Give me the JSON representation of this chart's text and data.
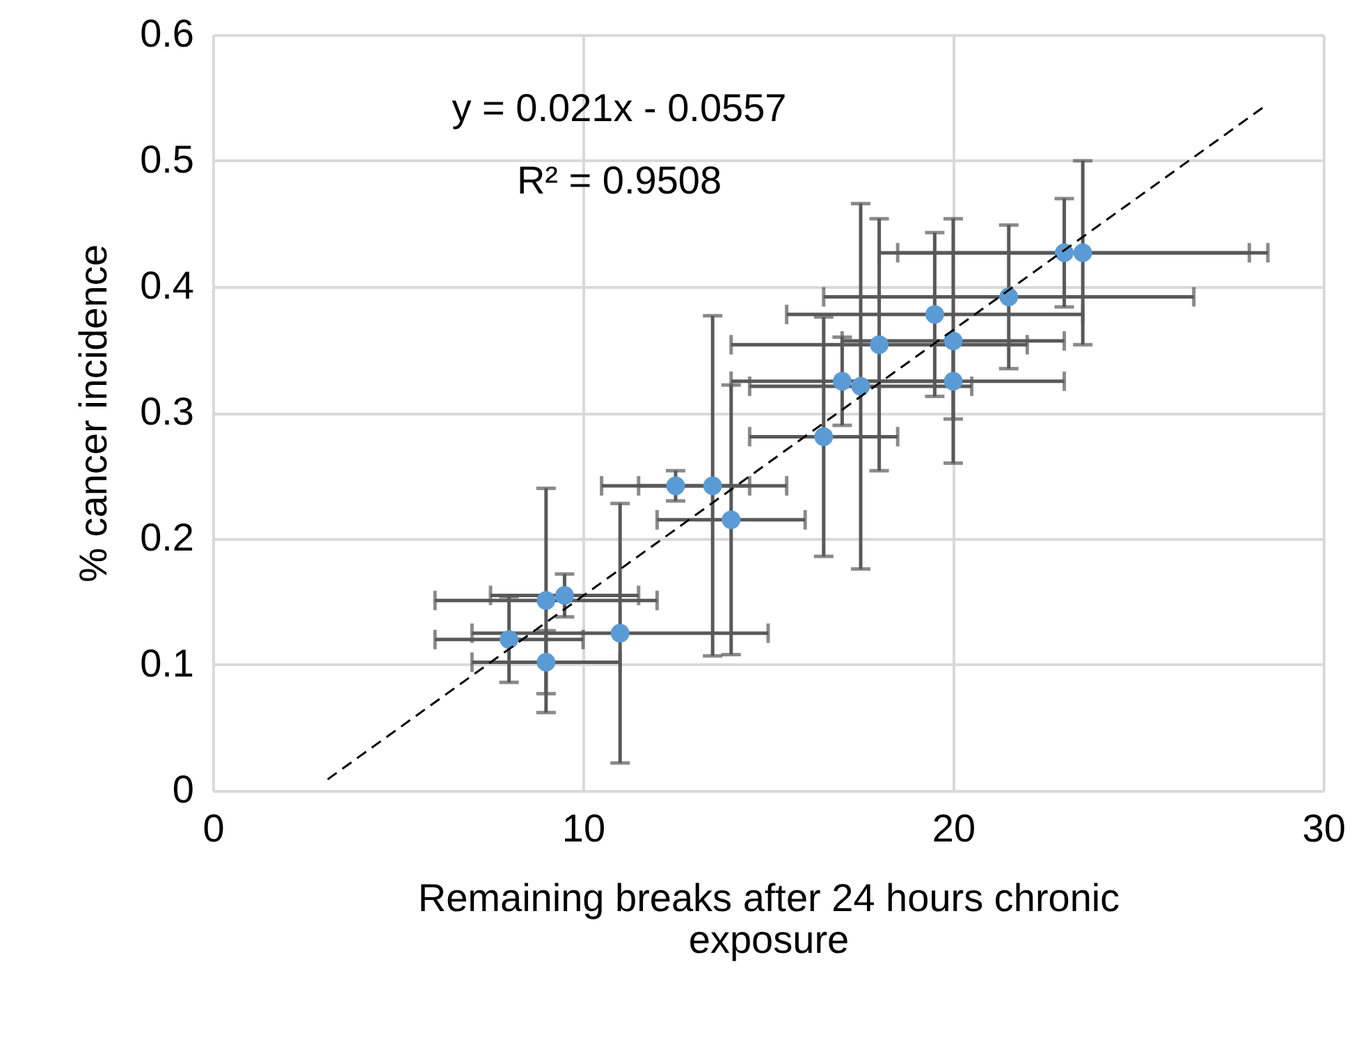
{
  "chart_data": {
    "type": "scatter",
    "xlabel": "Remaining breaks after 24 hours chronic exposure",
    "ylabel": "% cancer incidence",
    "annotations": [
      "y = 0.021x - 0.0557",
      "R² = 0.9508"
    ],
    "xlim": [
      0,
      30
    ],
    "xticks": [
      0,
      10,
      20,
      30
    ],
    "ylim": [
      0,
      0.6
    ],
    "yticks": [
      0,
      0.1,
      0.2,
      0.3,
      0.4,
      0.5,
      0.6
    ],
    "grid": true,
    "marker": "circle",
    "series": [
      {
        "color": "#5b9bd5",
        "x": [
          8,
          9,
          9,
          9.5,
          11,
          12.5,
          13.5,
          14,
          16.5,
          17,
          17.5,
          18,
          19.5,
          20,
          20,
          21.5,
          23,
          23.5
        ],
        "values": [
          0.12,
          0.102,
          0.151,
          0.155,
          0.125,
          0.242,
          0.242,
          0.215,
          0.281,
          0.325,
          0.321,
          0.354,
          0.378,
          0.357,
          0.325,
          0.392,
          0.427,
          0.427
        ],
        "errors": [
          0.034,
          0.025,
          0.089,
          0.017,
          0.103,
          0.012,
          0.135,
          0.107,
          0.095,
          0.035,
          0.145,
          0.1,
          0.065,
          0.097,
          0.03,
          0.057,
          0.043,
          0.073
        ],
        "xerrors": [
          2,
          2,
          3,
          2,
          4,
          2,
          2,
          2,
          2,
          3,
          3,
          4,
          4,
          3,
          3,
          5,
          5,
          5
        ]
      },
      {
        "type": "line",
        "color": "#000000",
        "line_style": "dashed",
        "marker": "none",
        "x": [
          3.1,
          28.4
        ],
        "values": [
          0.009,
          0.543
        ]
      }
    ]
  }
}
